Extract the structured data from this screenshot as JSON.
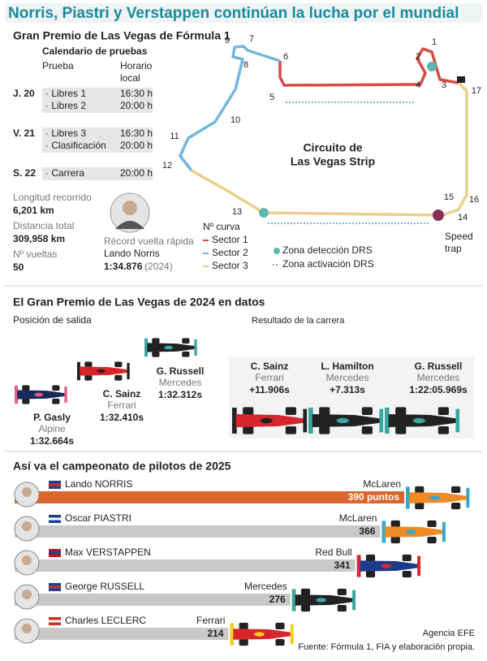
{
  "title": "Norris, Piastri y Verstappen continúan la lucha por el mundial",
  "event": {
    "heading": "Gran Premio de Las Vegas de Fórmula 1",
    "calendar_title": "Calendario de pruebas",
    "col_session": "Prueba",
    "col_time_line1": "Horario",
    "col_time_line2": "local",
    "days": [
      {
        "day": "J. 20",
        "sessions": [
          {
            "name": "· Libres 1",
            "time": "16:30 h"
          },
          {
            "name": "· Libres 2",
            "time": "20:00 h"
          }
        ]
      },
      {
        "day": "V. 21",
        "sessions": [
          {
            "name": "· Libres 3",
            "time": "16:30 h"
          },
          {
            "name": "· Clasificación",
            "time": "20:00 h"
          }
        ]
      },
      {
        "day": "S. 22",
        "sessions": [
          {
            "name": "· Carrera",
            "time": "20:00 h"
          }
        ]
      }
    ]
  },
  "stats": [
    {
      "label": "Longitud recorrido",
      "value": "6,201 km"
    },
    {
      "label": "Distancia total",
      "value": "309,958 km"
    },
    {
      "label": "Nº vueltas",
      "value": "50"
    }
  ],
  "lap_record": {
    "label": "Récord vuelta rápida",
    "driver": "Lando Norris",
    "time": "1:34.876",
    "year": "(2024)"
  },
  "circuit": {
    "name_line1": "Circuito de",
    "name_line2": "Las Vegas Strip",
    "turns": [
      "1",
      "2",
      "3",
      "4",
      "5",
      "6",
      "7",
      "8",
      "9",
      "10",
      "11",
      "12",
      "13",
      "14",
      "15",
      "16",
      "17"
    ],
    "legend_turns": "Nº curva",
    "sectors": [
      "Sector 1",
      "Sector 2",
      "Sector 3"
    ],
    "drs_detection": "Zona detección DRS",
    "drs_activation": "Zona activación DRS",
    "speed_trap_line1": "Speed",
    "speed_trap_line2": "trap"
  },
  "race2024": {
    "heading": "El Gran Premio de Las Vegas de 2024 en datos",
    "grid_title": "Posición de salida",
    "grid": [
      {
        "driver": "G. Russell",
        "team": "Mercedes",
        "time": "1:32.312s"
      },
      {
        "driver": "C. Sainz",
        "team": "Ferrari",
        "time": "1:32.410s"
      },
      {
        "driver": "P. Gasly",
        "team": "Alpine",
        "time": "1:32.664s"
      }
    ],
    "result_title": "Resultado de la carrera",
    "result": [
      {
        "driver": "C. Sainz",
        "team": "Ferrari",
        "time": "+11.906s"
      },
      {
        "driver": "L. Hamilton",
        "team": "Mercedes",
        "time": "+7.313s"
      },
      {
        "driver": "G. Russell",
        "team": "Mercedes",
        "time": "1:22:05.969s"
      }
    ]
  },
  "standings": {
    "heading": "Así va el campeonato de pilotos de 2025",
    "drivers": [
      {
        "name": "Lando NORRIS",
        "team": "McLaren",
        "points": 390,
        "points_label": "390 puntos"
      },
      {
        "name": "Oscar PIASTRI",
        "team": "McLaren",
        "points": 366
      },
      {
        "name": "Max VERSTAPPEN",
        "team": "Red Bull",
        "points": 341
      },
      {
        "name": "George RUSSELL",
        "team": "Mercedes",
        "points": 276
      },
      {
        "name": "Charles LECLERC",
        "team": "Ferrari",
        "points": 214
      }
    ]
  },
  "footer": {
    "agency": "Agencia EFE",
    "source": "Fuente: Fórmula 1, FIA y elaboración propia."
  }
}
